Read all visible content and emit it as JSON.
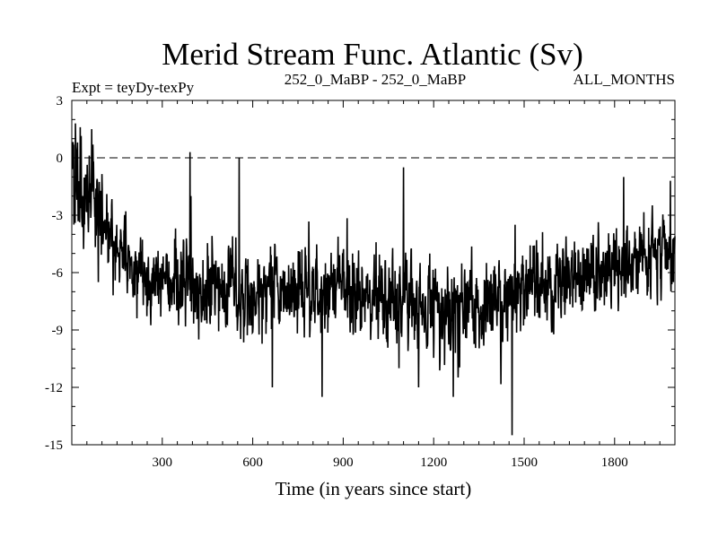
{
  "chart_data": {
    "type": "line",
    "title": "Merid Stream Func. Atlantic (Sv)",
    "subtitle_left": "Expt = teyDy-texPy",
    "subtitle_center": "252_0_MaBP - 252_0_MaBP",
    "subtitle_right": "ALL_MONTHS",
    "xlabel": "Time (in years since start)",
    "ylabel": "",
    "xlim": [
      0,
      2000
    ],
    "ylim": [
      -15,
      3
    ],
    "x_ticks": [
      300,
      600,
      900,
      1200,
      1500,
      1800
    ],
    "y_ticks": [
      3,
      0,
      -3,
      -6,
      -9,
      -12,
      -15
    ],
    "reference_line": {
      "y": 0,
      "style": "dashed"
    },
    "series": [
      {
        "name": "Merid Stream Func. Atlantic",
        "x_start": 1,
        "x_step": 1,
        "n_points": 2000,
        "anchor_x": [
          0,
          30,
          60,
          90,
          120,
          150,
          200,
          250,
          300,
          350,
          400,
          450,
          500,
          600,
          700,
          800,
          900,
          1000,
          1100,
          1200,
          1300,
          1400,
          1500,
          1600,
          1700,
          1800,
          1900,
          2000
        ],
        "anchor_mean": [
          -0.5,
          -1.2,
          -1.8,
          -2.6,
          -3.6,
          -4.8,
          -5.8,
          -6.2,
          -6.5,
          -6.7,
          -6.8,
          -7.0,
          -7.2,
          -7.2,
          -7.0,
          -7.0,
          -7.1,
          -7.3,
          -7.4,
          -7.8,
          -8.0,
          -7.6,
          -7.0,
          -6.6,
          -6.2,
          -5.8,
          -5.2,
          -4.8
        ],
        "anchor_spread": [
          1.2,
          1.2,
          1.1,
          1.1,
          1.0,
          1.0,
          1.0,
          1.0,
          1.0,
          1.05,
          1.1,
          1.1,
          1.1,
          1.1,
          1.1,
          1.1,
          1.1,
          1.1,
          1.1,
          1.15,
          1.2,
          1.15,
          1.1,
          1.05,
          1.0,
          1.0,
          1.0,
          1.0
        ],
        "extreme_points": [
          {
            "x": 12,
            "y": 1.8
          },
          {
            "x": 28,
            "y": 1.6
          },
          {
            "x": 66,
            "y": 1.5
          },
          {
            "x": 88,
            "y": -6.5
          },
          {
            "x": 392,
            "y": 0.3
          },
          {
            "x": 395,
            "y": -2.0
          },
          {
            "x": 555,
            "y": 0.0
          },
          {
            "x": 665,
            "y": -12.0
          },
          {
            "x": 830,
            "y": -12.5
          },
          {
            "x": 1085,
            "y": -11.0
          },
          {
            "x": 1100,
            "y": -0.5
          },
          {
            "x": 1150,
            "y": -12.0
          },
          {
            "x": 1265,
            "y": -12.5
          },
          {
            "x": 1460,
            "y": -14.5
          },
          {
            "x": 1470,
            "y": -3.5
          },
          {
            "x": 1830,
            "y": -1.0
          },
          {
            "x": 1985,
            "y": -1.2
          },
          {
            "x": 1995,
            "y": -6.5
          }
        ],
        "color": "#000000"
      }
    ]
  }
}
